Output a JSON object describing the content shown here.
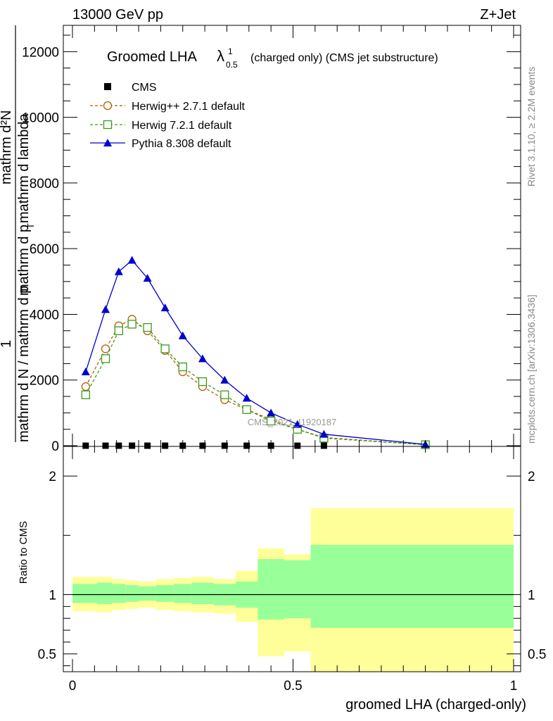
{
  "header": {
    "energy": "13000 GeV pp",
    "process": "Z+Jet",
    "rivet": "Rivet 3.1.10, ≥ 2.2M events",
    "mcplots": "mcplots.cern.ch [arXiv:1306.3436]"
  },
  "chart_data": [
    {
      "type": "line",
      "title_main": "Groomed LHA",
      "title_lambda": "λ",
      "title_sup": "1",
      "title_sub": "0.5",
      "title_rest": "(charged only) (CMS jet substructure)",
      "ylabel_top": "mathrm d²N",
      "ylabel_mid": "mathrm d p",
      "ylabel_sub": "T",
      "ylabel_mid2": " mathrm d lambda",
      "ylabel_left_top": "1",
      "ylabel_left_bottom": "mathrm d N / mathrm d p",
      "ylabel_left_bottom2": "mathrm d p",
      "ylabel_left_rest": "athrm d p",
      "watermark": "CMS_2021_I1920187",
      "xlim": [
        0,
        1
      ],
      "ylim": [
        0,
        12800
      ],
      "yticks": [
        0,
        2000,
        4000,
        6000,
        8000,
        10000,
        12000
      ],
      "ytick_labels": [
        "0",
        "2000",
        "4000",
        "6000",
        "8000",
        "10000",
        "12000"
      ],
      "legend_position": "top-left",
      "series": [
        {
          "name": "CMS",
          "color": "#000000",
          "marker": "square-filled",
          "x": [
            0.03,
            0.075,
            0.105,
            0.135,
            0.17,
            0.21,
            0.25,
            0.295,
            0.345,
            0.395,
            0.45,
            0.51,
            0.57
          ],
          "y": [
            0,
            0,
            0,
            0,
            0,
            0,
            0,
            0,
            0,
            0,
            0,
            0,
            0
          ]
        },
        {
          "name": "Herwig++ 2.7.1 default",
          "color": "#b45f00",
          "marker": "circle-open",
          "x": [
            0.03,
            0.075,
            0.105,
            0.135,
            0.17,
            0.21,
            0.25,
            0.295,
            0.345,
            0.395,
            0.45,
            0.51,
            0.57,
            0.8
          ],
          "y": [
            1800,
            2950,
            3650,
            3850,
            3500,
            2900,
            2250,
            1800,
            1400,
            1100,
            800,
            500,
            250,
            30
          ]
        },
        {
          "name": "Herwig 7.2.1 default",
          "color": "#3a9a1a",
          "marker": "square-open",
          "x": [
            0.03,
            0.075,
            0.105,
            0.135,
            0.17,
            0.21,
            0.25,
            0.295,
            0.345,
            0.395,
            0.45,
            0.51,
            0.57,
            0.8
          ],
          "y": [
            1550,
            2650,
            3500,
            3700,
            3600,
            2950,
            2400,
            1950,
            1550,
            1100,
            750,
            500,
            230,
            30
          ]
        },
        {
          "name": "Pythia 8.308 default",
          "color": "#0000cc",
          "marker": "triangle-filled",
          "x": [
            0.03,
            0.075,
            0.105,
            0.135,
            0.17,
            0.21,
            0.25,
            0.295,
            0.345,
            0.395,
            0.45,
            0.51,
            0.57,
            0.8
          ],
          "y": [
            2250,
            4150,
            5300,
            5650,
            5100,
            4200,
            3350,
            2650,
            2000,
            1450,
            1000,
            650,
            350,
            40
          ]
        }
      ]
    },
    {
      "type": "area",
      "ylabel": "Ratio to CMS",
      "xlabel": "groomed LHA (charged-only)",
      "xlim": [
        0,
        1
      ],
      "ylim": [
        0.35,
        2.25
      ],
      "xticks": [
        0,
        0.5,
        1
      ],
      "xtick_labels": [
        "0",
        "0.5",
        "1"
      ],
      "yticks": [
        0.5,
        1,
        2
      ],
      "ytick_labels": [
        "0.5",
        "1",
        "2"
      ],
      "reference_line": 1,
      "bins": [
        {
          "x0": 0.0,
          "x1": 0.055,
          "green": [
            0.93,
            1.09
          ],
          "yellow": [
            0.86,
            1.15
          ]
        },
        {
          "x0": 0.055,
          "x1": 0.09,
          "green": [
            0.92,
            1.1
          ],
          "yellow": [
            0.85,
            1.15
          ]
        },
        {
          "x0": 0.09,
          "x1": 0.12,
          "green": [
            0.93,
            1.09
          ],
          "yellow": [
            0.87,
            1.13
          ]
        },
        {
          "x0": 0.12,
          "x1": 0.15,
          "green": [
            0.94,
            1.08
          ],
          "yellow": [
            0.88,
            1.12
          ]
        },
        {
          "x0": 0.15,
          "x1": 0.19,
          "green": [
            0.95,
            1.07
          ],
          "yellow": [
            0.89,
            1.11
          ]
        },
        {
          "x0": 0.19,
          "x1": 0.23,
          "green": [
            0.94,
            1.08
          ],
          "yellow": [
            0.87,
            1.13
          ]
        },
        {
          "x0": 0.23,
          "x1": 0.27,
          "green": [
            0.93,
            1.09
          ],
          "yellow": [
            0.86,
            1.14
          ]
        },
        {
          "x0": 0.27,
          "x1": 0.32,
          "green": [
            0.92,
            1.1
          ],
          "yellow": [
            0.85,
            1.15
          ]
        },
        {
          "x0": 0.32,
          "x1": 0.37,
          "green": [
            0.91,
            1.09
          ],
          "yellow": [
            0.84,
            1.13
          ]
        },
        {
          "x0": 0.37,
          "x1": 0.42,
          "green": [
            0.89,
            1.11
          ],
          "yellow": [
            0.77,
            1.2
          ]
        },
        {
          "x0": 0.42,
          "x1": 0.48,
          "green": [
            0.79,
            1.3
          ],
          "yellow": [
            0.48,
            1.39
          ]
        },
        {
          "x0": 0.48,
          "x1": 0.54,
          "green": [
            0.8,
            1.29
          ],
          "yellow": [
            0.52,
            1.34
          ]
        },
        {
          "x0": 0.54,
          "x1": 1.0,
          "green": [
            0.72,
            1.42
          ],
          "yellow": [
            0.35,
            1.73
          ]
        }
      ]
    }
  ]
}
